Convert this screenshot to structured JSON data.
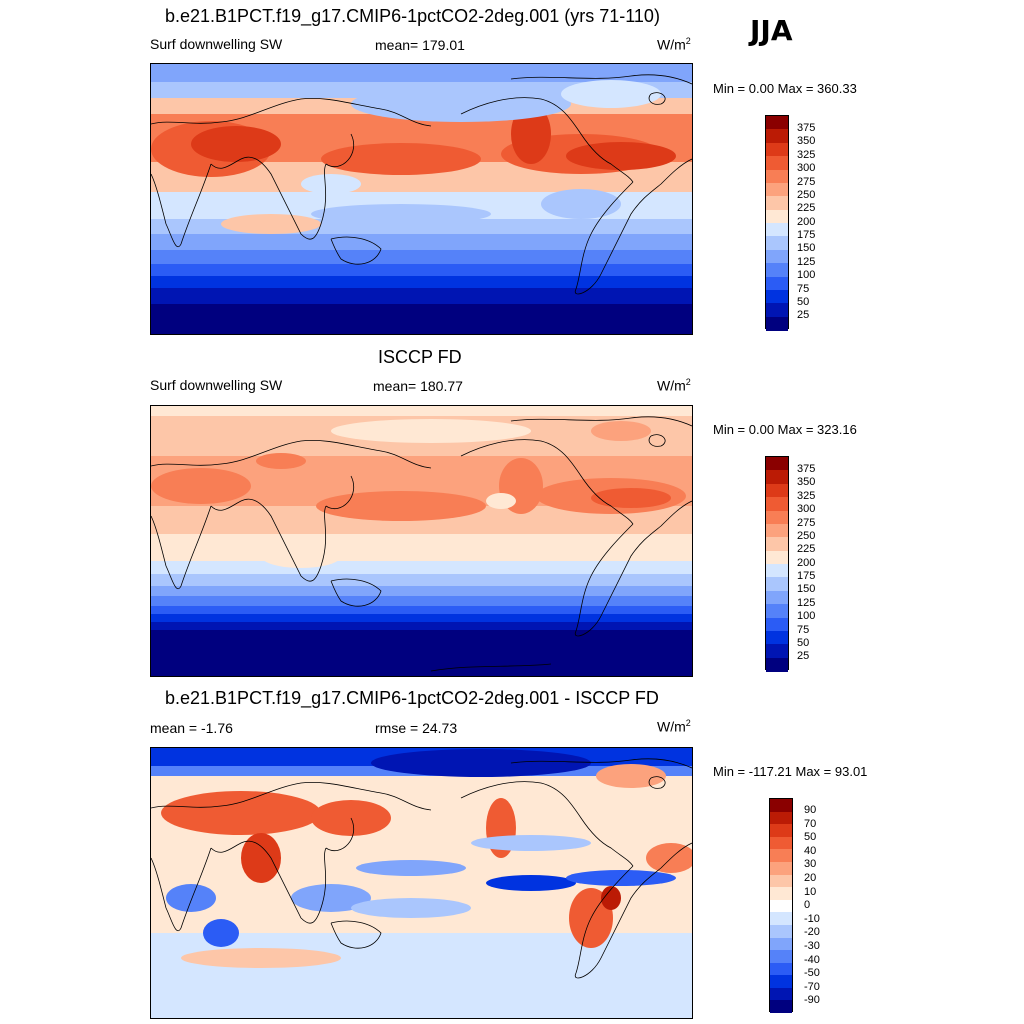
{
  "season": "JJA",
  "colors": {
    "positive_scale": [
      "#00007f",
      "#0015b3",
      "#0033e0",
      "#2b5cf5",
      "#5582f9",
      "#80a5fb",
      "#aac6fd",
      "#d4e6ff",
      "#ffe8d4",
      "#fdc6a8",
      "#fca27d",
      "#f87e55",
      "#ef5b33",
      "#dd3a18",
      "#bb1b05",
      "#8a0000"
    ],
    "diff_scale": [
      "#00007f",
      "#0015b3",
      "#0033e0",
      "#2b5cf5",
      "#5582f9",
      "#80a5fb",
      "#aac6fd",
      "#d4e6ff",
      "#ffffff",
      "#ffe8d4",
      "#fdc6a8",
      "#fca27d",
      "#f87e55",
      "#ef5b33",
      "#dd3a18",
      "#bb1b05",
      "#8a0000"
    ]
  },
  "panels": [
    {
      "title": "b.e21.B1PCT.f19_g17.CMIP6-1pctCO2-2deg.001 (yrs 71-110)",
      "left_label": "Surf downwelling SW",
      "center_label": "mean= 179.01",
      "units_base": "W/m",
      "units_exp": "2",
      "minmax": "Min =   0.00 Max = 360.33",
      "colorbar_ticks": [
        "375",
        "350",
        "325",
        "300",
        "275",
        "250",
        "225",
        "200",
        "175",
        "150",
        "125",
        "100",
        "75",
        "50",
        "25"
      ]
    },
    {
      "title": "ISCCP FD",
      "left_label": "Surf downwelling SW",
      "center_label": "mean= 180.77",
      "units_base": "W/m",
      "units_exp": "2",
      "minmax": "Min =   0.00 Max = 323.16",
      "colorbar_ticks": [
        "375",
        "350",
        "325",
        "300",
        "275",
        "250",
        "225",
        "200",
        "175",
        "150",
        "125",
        "100",
        "75",
        "50",
        "25"
      ]
    },
    {
      "title": "b.e21.B1PCT.f19_g17.CMIP6-1pctCO2-2deg.001 - ISCCP FD",
      "left_label": "mean =  -1.76",
      "center_label": "rmse =  24.73",
      "units_base": "W/m",
      "units_exp": "2",
      "minmax": "Min = -117.21 Max =  93.01",
      "colorbar_ticks": [
        "90",
        "70",
        "50",
        "40",
        "30",
        "20",
        "10",
        "0",
        "-10",
        "-20",
        "-30",
        "-40",
        "-50",
        "-70",
        "-90"
      ]
    }
  ]
}
